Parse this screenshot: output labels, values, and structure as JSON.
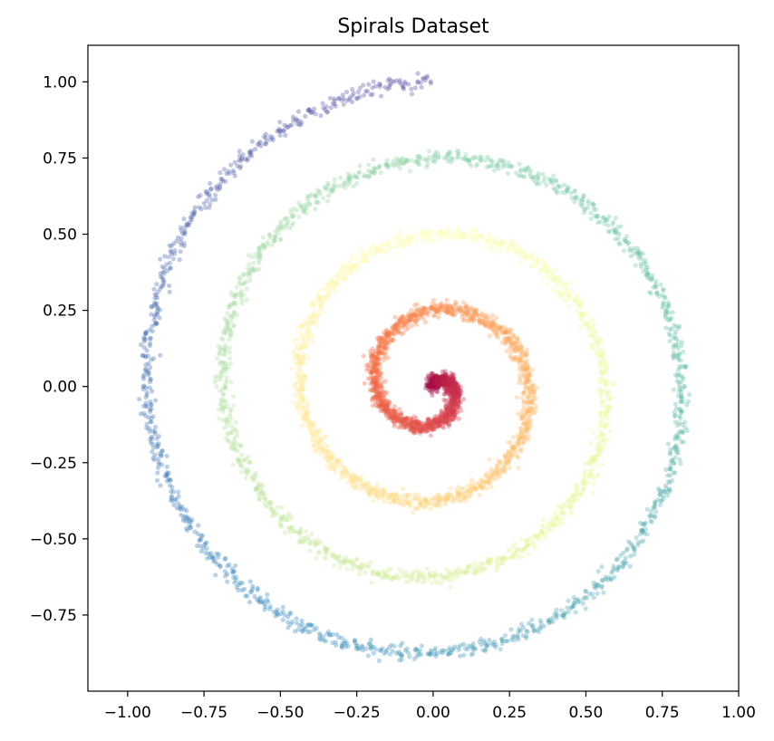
{
  "chart_data": {
    "type": "scatter",
    "title": "Spirals Dataset",
    "xlabel": "",
    "ylabel": "",
    "xlim": [
      -1.13,
      1.0
    ],
    "ylim": [
      -1.0,
      1.12
    ],
    "xticks": [
      -1.0,
      -0.75,
      -0.5,
      -0.25,
      0.0,
      0.25,
      0.5,
      0.75,
      1.0
    ],
    "xtick_labels": [
      "−1.00",
      "−0.75",
      "−0.50",
      "−0.25",
      "0.00",
      "0.25",
      "0.50",
      "0.75",
      "1.00"
    ],
    "yticks": [
      1.0,
      0.75,
      0.5,
      0.25,
      0.0,
      -0.25,
      -0.5,
      -0.75
    ],
    "ytick_labels": [
      "1.00",
      "0.75",
      "0.50",
      "0.25",
      "0.00",
      "−0.25",
      "−0.50",
      "−0.75"
    ],
    "grid": false,
    "legend": "none",
    "colormap": "Spectral",
    "series": [
      {
        "description_values": "Archimedean spiral r = theta / (2π·4), theta from 0 to 8π, radius 0 to 1.00, colored by theta with the Spectral colormap; small gaussian noise around the curve",
        "theta_start": 0,
        "theta_end": 25.13,
        "radius_end": 1.0,
        "noise_sd": 0.012,
        "alpha": 0.35
      }
    ],
    "sample_points": [
      {
        "x": 0.0,
        "y": 0.0
      },
      {
        "x": 0.0,
        "y": 0.25
      },
      {
        "x": 0.0,
        "y": -0.375
      },
      {
        "x": 0.0,
        "y": 0.5
      },
      {
        "x": 0.0,
        "y": -0.625
      },
      {
        "x": 0.0,
        "y": 0.75
      },
      {
        "x": 0.0,
        "y": -0.875
      },
      {
        "x": 0.0,
        "y": 1.0
      }
    ]
  }
}
